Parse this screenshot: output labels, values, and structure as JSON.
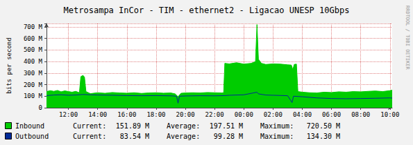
{
  "chart_data": {
    "type": "line",
    "title": "Metrosampa InCor - TIM - ethernet2 - Ligacao UNESP 10Gbps",
    "ylabel": "bits per second",
    "xlim": [
      10.5,
      34.15
    ],
    "xticks": [
      {
        "value": 12,
        "label": "12:00"
      },
      {
        "value": 14,
        "label": "14:00"
      },
      {
        "value": 16,
        "label": "16:00"
      },
      {
        "value": 18,
        "label": "18:00"
      },
      {
        "value": 20,
        "label": "20:00"
      },
      {
        "value": 22,
        "label": "22:00"
      },
      {
        "value": 24,
        "label": "00:00"
      },
      {
        "value": 26,
        "label": "02:00"
      },
      {
        "value": 28,
        "label": "04:00"
      },
      {
        "value": 30,
        "label": "06:00"
      },
      {
        "value": 32,
        "label": "08:00"
      },
      {
        "value": 34,
        "label": "10:00"
      }
    ],
    "ylim": [
      0,
      730
    ],
    "yticks": [
      0,
      {
        "value": 100,
        "label": "100 M"
      },
      {
        "value": 200,
        "label": "200 M"
      },
      {
        "value": 300,
        "label": "300 M"
      },
      {
        "value": 400,
        "label": "400 M"
      },
      {
        "value": 500,
        "label": "500 M"
      },
      {
        "value": 600,
        "label": "600 M"
      },
      {
        "value": 700,
        "label": "700 M"
      }
    ],
    "grid": true,
    "legend": "bottom",
    "series": [
      {
        "name": "Inbound",
        "type": "area",
        "color": "#00cc00",
        "x": [
          10.5,
          10.75,
          11.0,
          11.25,
          11.5,
          11.75,
          12.0,
          12.25,
          12.5,
          12.75,
          12.85,
          13.0,
          13.1,
          13.2,
          13.5,
          14.0,
          14.5,
          15.0,
          15.5,
          16.0,
          16.5,
          17.0,
          17.5,
          18.0,
          18.5,
          19.0,
          19.3,
          19.5,
          19.7,
          20.0,
          20.5,
          21.0,
          21.5,
          22.0,
          22.5,
          22.62,
          22.7,
          23.0,
          23.5,
          24.0,
          24.5,
          24.8,
          24.9,
          25.0,
          25.2,
          25.5,
          26.0,
          26.5,
          27.0,
          27.25,
          27.35,
          27.45,
          27.6,
          27.7,
          28.0,
          28.5,
          29.0,
          29.5,
          30.0,
          30.5,
          31.0,
          31.5,
          32.0,
          32.5,
          33.0,
          33.5,
          34.0,
          34.15
        ],
        "values": [
          140,
          148,
          142,
          150,
          138,
          146,
          140,
          135,
          142,
          130,
          270,
          280,
          265,
          140,
          122,
          130,
          125,
          132,
          128,
          126,
          130,
          124,
          128,
          130,
          126,
          128,
          120,
          95,
          125,
          128,
          130,
          128,
          132,
          130,
          128,
          130,
          385,
          380,
          390,
          378,
          385,
          400,
          720.5,
          420,
          385,
          375,
          380,
          378,
          372,
          370,
          330,
          375,
          378,
          140,
          135,
          130,
          128,
          135,
          132,
          138,
          135,
          140,
          138,
          142,
          145,
          140,
          148,
          151.89
        ],
        "stats": [
          {
            "name": "Current:",
            "value": 151.89,
            "label": "151.89 M"
          },
          {
            "name": "Average:",
            "value": 197.51,
            "label": "197.51 M"
          },
          {
            "name": "Maximum:",
            "value": 720.5,
            "label": "720.50 M"
          }
        ]
      },
      {
        "name": "Outbound",
        "type": "line",
        "color": "#002a97",
        "x": [
          10.5,
          11.0,
          11.5,
          12.0,
          12.5,
          13.0,
          13.5,
          14.0,
          15.0,
          16.0,
          17.0,
          18.0,
          19.0,
          19.4,
          19.5,
          19.6,
          20.0,
          21.0,
          22.0,
          22.7,
          23.0,
          24.0,
          24.9,
          25.0,
          25.5,
          26.0,
          27.0,
          27.3,
          27.4,
          28.0,
          29.0,
          30.0,
          31.0,
          32.0,
          33.0,
          34.0,
          34.15
        ],
        "values": [
          105,
          110,
          112,
          108,
          110,
          115,
          112,
          110,
          108,
          105,
          104,
          105,
          103,
          100,
          40,
          100,
          102,
          104,
          103,
          105,
          108,
          112,
          134.3,
          120,
          110,
          108,
          104,
          45,
          100,
          95,
          85,
          80,
          78,
          80,
          82,
          85,
          83.54
        ],
        "stats": [
          {
            "name": "Current:",
            "value": 83.54,
            "label": "83.54 M"
          },
          {
            "name": "Average:",
            "value": 99.28,
            "label": "99.28 M"
          },
          {
            "name": "Maximum:",
            "value": 134.3,
            "label": "134.30 M"
          }
        ]
      }
    ],
    "annotations": [
      "RRDTOOL / TOBI OETIKER"
    ]
  }
}
